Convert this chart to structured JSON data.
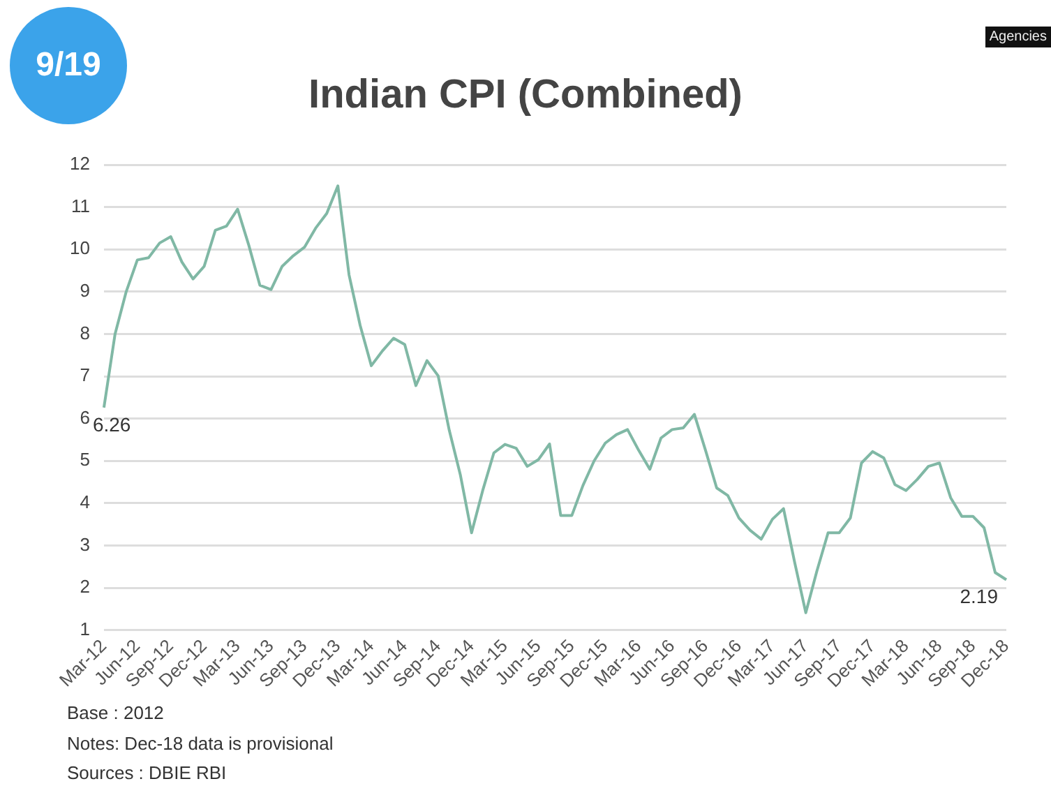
{
  "chart_data": {
    "type": "line",
    "title": "Indian CPI (Combined)",
    "categories": [
      "Mar-12",
      null,
      null,
      "Jun-12",
      null,
      null,
      "Sep-12",
      null,
      null,
      "Dec-12",
      null,
      null,
      "Mar-13",
      null,
      null,
      "Jun-13",
      null,
      null,
      "Sep-13",
      null,
      null,
      "Dec-13",
      null,
      null,
      "Mar-14",
      null,
      null,
      "Jun-14",
      null,
      null,
      "Sep-14",
      null,
      null,
      "Dec-14",
      null,
      null,
      "Mar-15",
      null,
      null,
      "Jun-15",
      null,
      null,
      "Sep-15",
      null,
      null,
      "Dec-15",
      null,
      null,
      "Mar-16",
      null,
      null,
      "Jun-16",
      null,
      null,
      "Sep-16",
      null,
      null,
      "Dec-16",
      null,
      null,
      "Mar-17",
      null,
      null,
      "Jun-17",
      null,
      null,
      "Sep-17",
      null,
      null,
      "Dec-17",
      null,
      null,
      "Mar-18",
      null,
      null,
      "Jun-18",
      null,
      null,
      "Sep-18",
      null,
      null,
      "Dec-18"
    ],
    "series": [
      {
        "color": "#80b8a5",
        "values": [
          6.26,
          8.0,
          9.0,
          9.75,
          9.8,
          10.15,
          10.3,
          9.7,
          9.3,
          9.6,
          10.45,
          10.55,
          10.95,
          10.1,
          9.15,
          9.05,
          9.6,
          9.85,
          10.05,
          10.5,
          10.85,
          11.5,
          9.4,
          8.2,
          7.25,
          7.6,
          7.9,
          7.75,
          6.78,
          7.37,
          7.01,
          5.72,
          4.66,
          3.3,
          4.3,
          5.19,
          5.39,
          5.3,
          4.87,
          5.03,
          5.4,
          3.71,
          3.71,
          4.42,
          5.0,
          5.42,
          5.62,
          5.74,
          5.25,
          4.8,
          5.54,
          5.74,
          5.78,
          6.1,
          5.25,
          4.36,
          4.18,
          3.65,
          3.36,
          3.15,
          3.62,
          3.87,
          2.6,
          1.41,
          2.4,
          3.3,
          3.3,
          3.65,
          4.95,
          5.22,
          5.07,
          4.44,
          4.3,
          4.56,
          4.87,
          4.95,
          4.13,
          3.69,
          3.69,
          3.42,
          2.36,
          2.19
        ]
      }
    ],
    "ylim": [
      1,
      12
    ],
    "yticks": [
      1,
      2,
      3,
      4,
      5,
      6,
      7,
      8,
      9,
      10,
      11,
      12
    ],
    "grid": "y",
    "marker": "none",
    "line_style": "solid",
    "legend": false,
    "annotations": [
      {
        "text": "6.26",
        "x": "Mar-12",
        "y": 6.26
      },
      {
        "text": "2.19",
        "x": "Dec-18",
        "y": 2.19
      },
      "9/19",
      "Agencies",
      "Base : 2012",
      "Notes: Dec-18 data is provisional",
      "Sources : DBIE RBI"
    ]
  }
}
